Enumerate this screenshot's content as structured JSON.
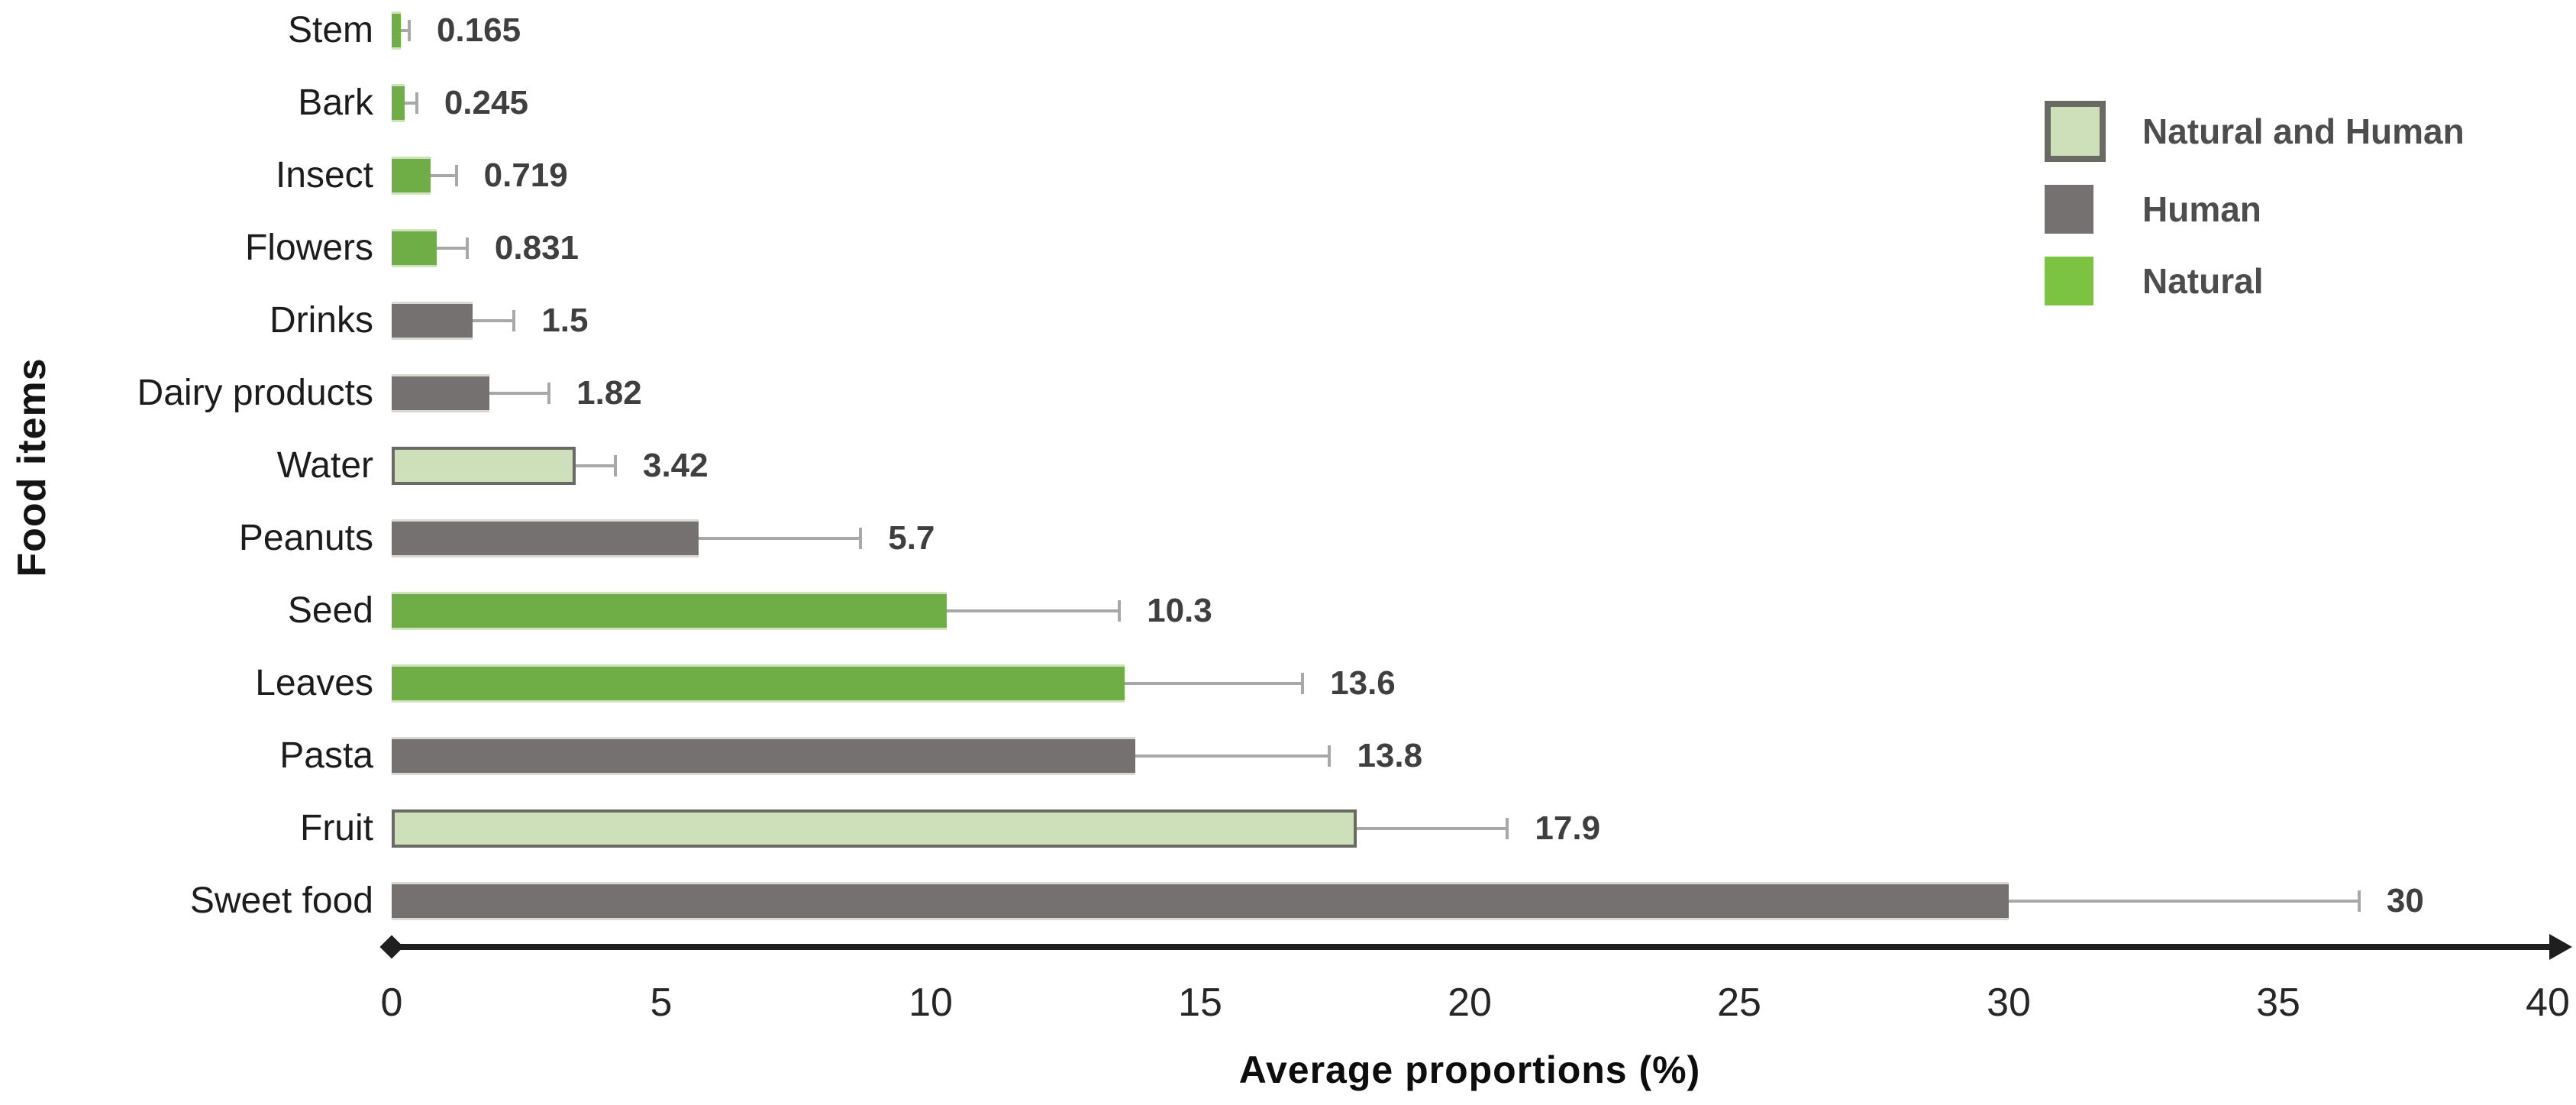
{
  "chart_data": {
    "type": "bar",
    "orientation": "horizontal",
    "title": "",
    "xlabel": "Average proportions (%)",
    "ylabel": "Food items",
    "xlim": [
      0,
      40
    ],
    "xticks": [
      0,
      5,
      10,
      15,
      20,
      25,
      30,
      35,
      40
    ],
    "grid": false,
    "legend_position": "top-right",
    "items": [
      {
        "category": "Stem",
        "value": 0.165,
        "value_label": "0.165",
        "error_plus": 0.16,
        "group": "natural"
      },
      {
        "category": "Bark",
        "value": 0.245,
        "value_label": "0.245",
        "error_plus": 0.22,
        "group": "natural"
      },
      {
        "category": "Insect",
        "value": 0.719,
        "value_label": "0.719",
        "error_plus": 0.48,
        "group": "natural"
      },
      {
        "category": "Flowers",
        "value": 0.831,
        "value_label": "0.831",
        "error_plus": 0.57,
        "group": "natural"
      },
      {
        "category": "Drinks",
        "value": 1.5,
        "value_label": "1.5",
        "error_plus": 0.77,
        "group": "human"
      },
      {
        "category": "Dairy products",
        "value": 1.82,
        "value_label": "1.82",
        "error_plus": 1.1,
        "group": "human"
      },
      {
        "category": "Water",
        "value": 3.42,
        "value_label": "3.42",
        "error_plus": 0.73,
        "group": "natural_and_human"
      },
      {
        "category": "Peanuts",
        "value": 5.7,
        "value_label": "5.7",
        "error_plus": 3.0,
        "group": "human"
      },
      {
        "category": "Seed",
        "value": 10.3,
        "value_label": "10.3",
        "error_plus": 3.2,
        "group": "natural"
      },
      {
        "category": "Leaves",
        "value": 13.6,
        "value_label": "13.6",
        "error_plus": 3.3,
        "group": "natural"
      },
      {
        "category": "Pasta",
        "value": 13.8,
        "value_label": "13.8",
        "error_plus": 3.6,
        "group": "human"
      },
      {
        "category": "Fruit",
        "value": 17.9,
        "value_label": "17.9",
        "error_plus": 2.8,
        "group": "natural_and_human"
      },
      {
        "category": "Sweet food",
        "value": 30,
        "value_label": "30",
        "error_plus": 6.5,
        "group": "human"
      }
    ],
    "legend": [
      {
        "label": "Natural and Human",
        "group": "natural_and_human"
      },
      {
        "label": "Human",
        "group": "human"
      },
      {
        "label": "Natural",
        "group": "natural"
      }
    ],
    "colors": {
      "natural_bar": "#6fad47",
      "natural_legend": "#7dc342",
      "human_bar": "#767171",
      "natural_and_human_fill": "#cde0b9",
      "natural_and_human_border": "#6a6a64",
      "error_bar": "#a8a8a8",
      "axis": "#1f1f1f",
      "value_label_text": "#3f3f3f",
      "category_text": "#1c1c1c",
      "legend_text": "#4d4d4d"
    }
  }
}
